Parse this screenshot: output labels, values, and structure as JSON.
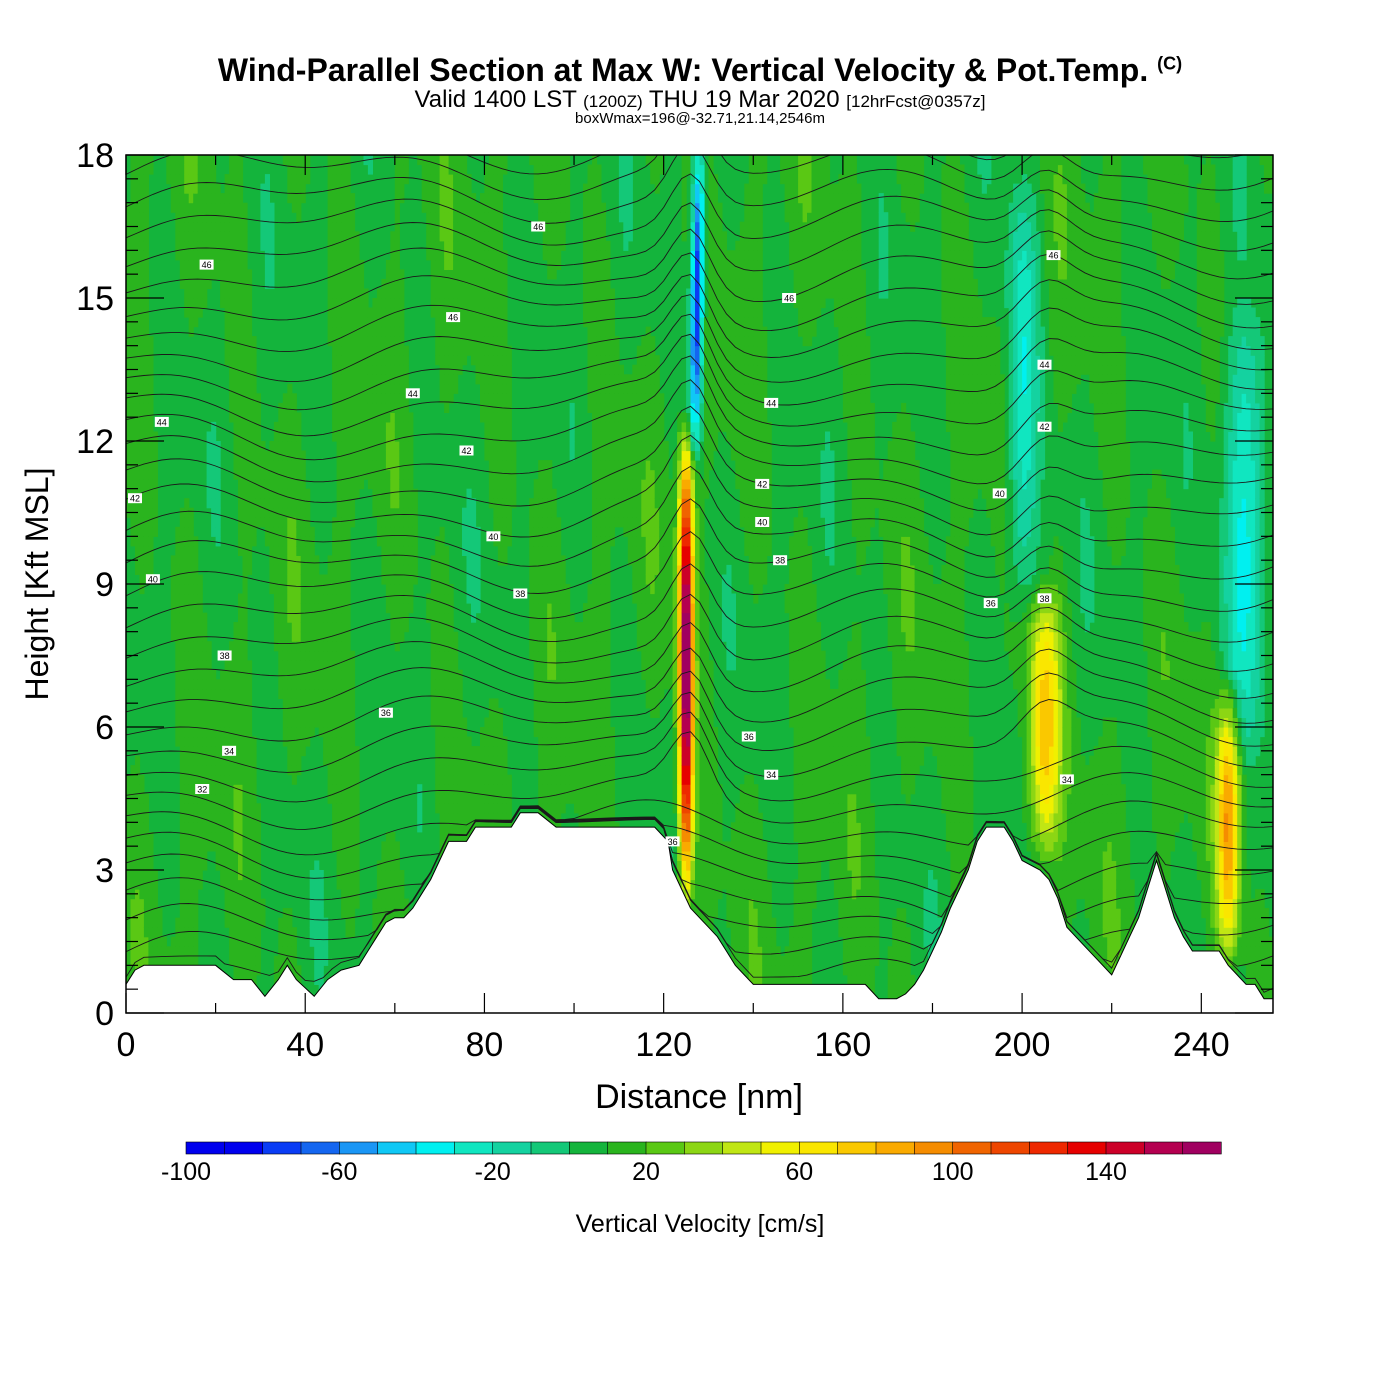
{
  "header": {
    "title": "Wind-Parallel Section at Max W: Vertical Velocity & Pot.Temp.",
    "copyright": "(C)",
    "valid_prefix": "Valid 1400 LST",
    "valid_utc": "(1200Z)",
    "valid_date": "THU 19 Mar 2020",
    "forecast": "[12hrFcst@0357z]",
    "box_wmax": "boxWmax=196@-32.71,21.14,2546m"
  },
  "chart_data": {
    "type": "heatmap",
    "xlabel": "Distance [nm]",
    "ylabel": "Height [Kft MSL]",
    "xlim": [
      0,
      256
    ],
    "ylim": [
      0,
      18
    ],
    "xticks": [
      0,
      40,
      80,
      120,
      160,
      200,
      240
    ],
    "yticks": [
      0,
      3,
      6,
      9,
      12,
      15,
      18
    ],
    "colorbar": {
      "label": "Vertical Velocity [cm/s]",
      "range": [
        -100,
        170
      ],
      "step": 10,
      "tick_values": [
        -100,
        -60,
        -20,
        20,
        60,
        100,
        140
      ],
      "colors": [
        "#0000ee",
        "#0a3cf5",
        "#1466f0",
        "#1a96f5",
        "#10c8f5",
        "#00f0f0",
        "#10e6c0",
        "#14d2a0",
        "#14c878",
        "#14b43c",
        "#2ab41e",
        "#5ac814",
        "#8cd614",
        "#c0e614",
        "#f0f000",
        "#fae600",
        "#fac800",
        "#faaa00",
        "#f58c00",
        "#f06400",
        "#ee4600",
        "#ee2800",
        "#e60000",
        "#cc0028",
        "#b40050",
        "#a00060"
      ]
    },
    "terrain": {
      "x": [
        0,
        2,
        4,
        6,
        20,
        24,
        28,
        31,
        34,
        36,
        38,
        42,
        45,
        48,
        52,
        54,
        56,
        58,
        60,
        62,
        64,
        66,
        68,
        70,
        72,
        74,
        76,
        78,
        80,
        82,
        84,
        86,
        88,
        90,
        92,
        96,
        100,
        104,
        108,
        112,
        118,
        121,
        122,
        124,
        126,
        128,
        130,
        132,
        134,
        136,
        138,
        140,
        144,
        150,
        158,
        165,
        168,
        170,
        172,
        174,
        176,
        178,
        180,
        182,
        184,
        186,
        188,
        190,
        192,
        194,
        196,
        198,
        200,
        204,
        206,
        208,
        210,
        214,
        216,
        220,
        222,
        224,
        226,
        228,
        230,
        232,
        234,
        236,
        238,
        242,
        244,
        246,
        248,
        250,
        252,
        254,
        256
      ],
      "h": [
        0.6,
        0.9,
        1.0,
        1.0,
        1.0,
        0.7,
        0.7,
        0.35,
        0.7,
        1.0,
        0.7,
        0.35,
        0.7,
        0.9,
        1.0,
        1.3,
        1.6,
        1.9,
        2.0,
        2.0,
        2.2,
        2.5,
        2.8,
        3.2,
        3.6,
        3.6,
        3.6,
        3.9,
        3.9,
        3.9,
        3.9,
        3.9,
        4.2,
        4.2,
        4.2,
        3.9,
        3.9,
        3.9,
        3.9,
        3.9,
        3.9,
        3.6,
        3.0,
        2.6,
        2.2,
        2.0,
        1.8,
        1.6,
        1.3,
        1.0,
        0.8,
        0.6,
        0.6,
        0.6,
        0.6,
        0.6,
        0.3,
        0.3,
        0.3,
        0.4,
        0.6,
        0.9,
        1.3,
        1.7,
        2.2,
        2.6,
        3.0,
        3.6,
        3.9,
        3.9,
        3.9,
        3.6,
        3.2,
        3.0,
        2.8,
        2.4,
        1.8,
        1.4,
        1.2,
        0.8,
        1.2,
        1.6,
        2.0,
        2.6,
        3.2,
        2.6,
        2.0,
        1.6,
        1.3,
        1.3,
        1.3,
        1.0,
        0.8,
        0.6,
        0.6,
        0.3,
        0.3
      ]
    },
    "features": [
      {
        "name": "updraft",
        "x": 125,
        "z0": 3.0,
        "z1": 11.5,
        "peak": 170,
        "width": 1.6
      },
      {
        "name": "downdraft",
        "x": 127,
        "z0": 12.0,
        "z1": 18.0,
        "peak": -95,
        "width": 1.4
      },
      {
        "name": "updraft",
        "x": 205,
        "z0": 3.5,
        "z1": 8.5,
        "peak": 70,
        "width": 3.5
      },
      {
        "name": "updraft",
        "x": 246,
        "z0": 1.5,
        "z1": 6.5,
        "peak": 80,
        "width": 2.5
      },
      {
        "name": "downdraft",
        "x": 200,
        "z0": 9.0,
        "z1": 17.0,
        "peak": -40,
        "width": 3.5
      },
      {
        "name": "downdraft",
        "x": 250,
        "z0": 6.0,
        "z1": 14.0,
        "peak": -45,
        "width": 5.0
      }
    ],
    "isentrope_labels": [
      {
        "text": "46",
        "x": 18,
        "z": 15.7
      },
      {
        "text": "46",
        "x": 92,
        "z": 16.5
      },
      {
        "text": "46",
        "x": 73,
        "z": 14.6
      },
      {
        "text": "46",
        "x": 148,
        "z": 15.0
      },
      {
        "text": "46",
        "x": 207,
        "z": 15.9
      },
      {
        "text": "44",
        "x": 8,
        "z": 12.4
      },
      {
        "text": "44",
        "x": 64,
        "z": 13.0
      },
      {
        "text": "44",
        "x": 144,
        "z": 12.8
      },
      {
        "text": "44",
        "x": 205,
        "z": 13.6
      },
      {
        "text": "42",
        "x": 2,
        "z": 10.8
      },
      {
        "text": "42",
        "x": 76,
        "z": 11.8
      },
      {
        "text": "42",
        "x": 142,
        "z": 11.1
      },
      {
        "text": "42",
        "x": 205,
        "z": 12.3
      },
      {
        "text": "40",
        "x": 6,
        "z": 9.1
      },
      {
        "text": "40",
        "x": 82,
        "z": 10.0
      },
      {
        "text": "40",
        "x": 142,
        "z": 10.3
      },
      {
        "text": "40",
        "x": 195,
        "z": 10.9
      },
      {
        "text": "38",
        "x": 22,
        "z": 7.5
      },
      {
        "text": "38",
        "x": 88,
        "z": 8.8
      },
      {
        "text": "38",
        "x": 146,
        "z": 9.5
      },
      {
        "text": "38",
        "x": 205,
        "z": 8.7
      },
      {
        "text": "36",
        "x": 58,
        "z": 6.3
      },
      {
        "text": "36",
        "x": 139,
        "z": 5.8
      },
      {
        "text": "36",
        "x": 122,
        "z": 3.6
      },
      {
        "text": "36",
        "x": 193,
        "z": 8.6
      },
      {
        "text": "34",
        "x": 23,
        "z": 5.5
      },
      {
        "text": "34",
        "x": 144,
        "z": 5.0
      },
      {
        "text": "34",
        "x": 210,
        "z": 4.9
      },
      {
        "text": "32",
        "x": 17,
        "z": 4.7
      }
    ]
  }
}
